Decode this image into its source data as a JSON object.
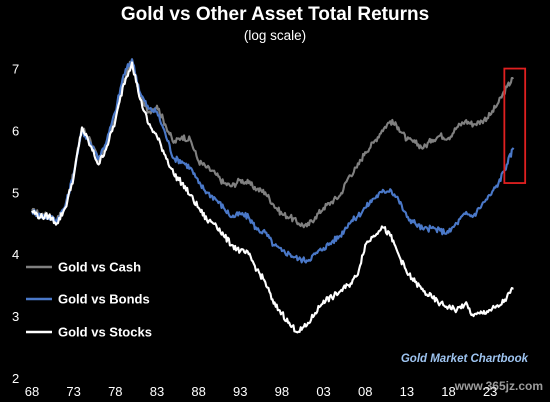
{
  "chart_data": {
    "type": "line",
    "title": "Gold vs Other Asset Total Returns",
    "subtitle": "(log scale)",
    "xlabel": "",
    "ylabel": "",
    "xlim": [
      1968,
      2028.5
    ],
    "ylim": [
      2,
      7.3
    ],
    "x_ticks": [
      "68",
      "73",
      "78",
      "83",
      "88",
      "93",
      "98",
      "03",
      "08",
      "13",
      "18",
      "23"
    ],
    "y_ticks": [
      "7",
      "6",
      "5",
      "4",
      "3",
      "2"
    ],
    "grid": false,
    "legend_position": "bottom-left",
    "series": [
      {
        "name": "Gold vs Cash",
        "color": "#808080",
        "points": [
          [
            1968,
            4.7
          ],
          [
            1969,
            4.65
          ],
          [
            1970,
            4.62
          ],
          [
            1971,
            4.55
          ],
          [
            1972,
            4.78
          ],
          [
            1973,
            5.3
          ],
          [
            1974,
            6.05
          ],
          [
            1975,
            5.85
          ],
          [
            1976,
            5.5
          ],
          [
            1977,
            5.8
          ],
          [
            1978,
            6.2
          ],
          [
            1979,
            6.8
          ],
          [
            1980,
            7.15
          ],
          [
            1981,
            6.5
          ],
          [
            1982,
            6.3
          ],
          [
            1983,
            6.4
          ],
          [
            1984,
            6.1
          ],
          [
            1985,
            5.8
          ],
          [
            1986,
            5.9
          ],
          [
            1987,
            5.85
          ],
          [
            1988,
            5.5
          ],
          [
            1989,
            5.4
          ],
          [
            1990,
            5.3
          ],
          [
            1991,
            5.15
          ],
          [
            1992,
            5.1
          ],
          [
            1993,
            5.2
          ],
          [
            1994,
            5.15
          ],
          [
            1995,
            5.05
          ],
          [
            1996,
            5.0
          ],
          [
            1997,
            4.8
          ],
          [
            1998,
            4.65
          ],
          [
            1999,
            4.6
          ],
          [
            2000,
            4.5
          ],
          [
            2001,
            4.45
          ],
          [
            2002,
            4.6
          ],
          [
            2003,
            4.75
          ],
          [
            2004,
            4.85
          ],
          [
            2005,
            4.95
          ],
          [
            2006,
            5.25
          ],
          [
            2007,
            5.4
          ],
          [
            2008,
            5.65
          ],
          [
            2009,
            5.8
          ],
          [
            2010,
            6.0
          ],
          [
            2011,
            6.15
          ],
          [
            2012,
            6.05
          ],
          [
            2013,
            5.85
          ],
          [
            2014,
            5.8
          ],
          [
            2015,
            5.72
          ],
          [
            2016,
            5.85
          ],
          [
            2017,
            5.92
          ],
          [
            2018,
            5.88
          ],
          [
            2019,
            6.05
          ],
          [
            2020,
            6.15
          ],
          [
            2021,
            6.1
          ],
          [
            2022,
            6.15
          ],
          [
            2023,
            6.25
          ],
          [
            2024,
            6.45
          ],
          [
            2025,
            6.7
          ],
          [
            2025.8,
            6.85
          ]
        ]
      },
      {
        "name": "Gold vs Bonds",
        "color": "#4a78c8",
        "points": [
          [
            1968,
            4.7
          ],
          [
            1969,
            4.62
          ],
          [
            1970,
            4.6
          ],
          [
            1971,
            4.55
          ],
          [
            1972,
            4.78
          ],
          [
            1973,
            5.3
          ],
          [
            1974,
            6.0
          ],
          [
            1975,
            5.8
          ],
          [
            1976,
            5.55
          ],
          [
            1977,
            5.85
          ],
          [
            1978,
            6.3
          ],
          [
            1979,
            6.9
          ],
          [
            1980,
            7.15
          ],
          [
            1981,
            6.6
          ],
          [
            1982,
            6.35
          ],
          [
            1983,
            6.3
          ],
          [
            1984,
            5.95
          ],
          [
            1985,
            5.55
          ],
          [
            1986,
            5.5
          ],
          [
            1987,
            5.4
          ],
          [
            1988,
            5.15
          ],
          [
            1989,
            5.0
          ],
          [
            1990,
            4.9
          ],
          [
            1991,
            4.75
          ],
          [
            1992,
            4.6
          ],
          [
            1993,
            4.65
          ],
          [
            1994,
            4.6
          ],
          [
            1995,
            4.4
          ],
          [
            1996,
            4.35
          ],
          [
            1997,
            4.15
          ],
          [
            1998,
            4.05
          ],
          [
            1999,
            4.0
          ],
          [
            2000,
            3.92
          ],
          [
            2001,
            3.9
          ],
          [
            2002,
            4.0
          ],
          [
            2003,
            4.1
          ],
          [
            2004,
            4.2
          ],
          [
            2005,
            4.3
          ],
          [
            2006,
            4.5
          ],
          [
            2007,
            4.6
          ],
          [
            2008,
            4.75
          ],
          [
            2009,
            4.9
          ],
          [
            2010,
            5.0
          ],
          [
            2011,
            5.05
          ],
          [
            2012,
            4.88
          ],
          [
            2013,
            4.6
          ],
          [
            2014,
            4.5
          ],
          [
            2015,
            4.4
          ],
          [
            2016,
            4.42
          ],
          [
            2017,
            4.38
          ],
          [
            2018,
            4.35
          ],
          [
            2019,
            4.5
          ],
          [
            2020,
            4.65
          ],
          [
            2021,
            4.62
          ],
          [
            2022,
            4.8
          ],
          [
            2023,
            4.95
          ],
          [
            2024,
            5.15
          ],
          [
            2025,
            5.45
          ],
          [
            2025.8,
            5.72
          ]
        ]
      },
      {
        "name": "Gold vs Stocks",
        "color": "#ffffff",
        "points": [
          [
            1968,
            4.7
          ],
          [
            1969,
            4.6
          ],
          [
            1970,
            4.62
          ],
          [
            1971,
            4.5
          ],
          [
            1972,
            4.75
          ],
          [
            1973,
            5.25
          ],
          [
            1974,
            6.05
          ],
          [
            1975,
            5.75
          ],
          [
            1976,
            5.45
          ],
          [
            1977,
            5.75
          ],
          [
            1978,
            6.15
          ],
          [
            1979,
            6.75
          ],
          [
            1980,
            7.1
          ],
          [
            1981,
            6.5
          ],
          [
            1982,
            6.1
          ],
          [
            1983,
            5.9
          ],
          [
            1984,
            5.6
          ],
          [
            1985,
            5.3
          ],
          [
            1986,
            5.15
          ],
          [
            1987,
            4.95
          ],
          [
            1988,
            4.75
          ],
          [
            1989,
            4.55
          ],
          [
            1990,
            4.5
          ],
          [
            1991,
            4.3
          ],
          [
            1992,
            4.15
          ],
          [
            1993,
            4.05
          ],
          [
            1994,
            4.0
          ],
          [
            1995,
            3.75
          ],
          [
            1996,
            3.55
          ],
          [
            1997,
            3.2
          ],
          [
            1998,
            3.05
          ],
          [
            1999,
            2.85
          ],
          [
            2000,
            2.75
          ],
          [
            2001,
            2.85
          ],
          [
            2002,
            3.05
          ],
          [
            2003,
            3.25
          ],
          [
            2004,
            3.3
          ],
          [
            2005,
            3.4
          ],
          [
            2006,
            3.5
          ],
          [
            2007,
            3.65
          ],
          [
            2008,
            4.15
          ],
          [
            2009,
            4.3
          ],
          [
            2010,
            4.45
          ],
          [
            2011,
            4.3
          ],
          [
            2012,
            4.0
          ],
          [
            2013,
            3.7
          ],
          [
            2014,
            3.55
          ],
          [
            2015,
            3.4
          ],
          [
            2016,
            3.3
          ],
          [
            2017,
            3.2
          ],
          [
            2018,
            3.15
          ],
          [
            2019,
            3.1
          ],
          [
            2020,
            3.2
          ],
          [
            2021,
            3.0
          ],
          [
            2022,
            3.05
          ],
          [
            2023,
            3.1
          ],
          [
            2024,
            3.15
          ],
          [
            2025,
            3.3
          ],
          [
            2025.8,
            3.45
          ]
        ]
      }
    ],
    "highlight": {
      "color": "#e02020",
      "x_range": [
        2024.7,
        2027.2
      ],
      "y_range": [
        5.15,
        7.0
      ]
    },
    "annotations": [
      "Gold Market Chartbook"
    ],
    "watermark": "www.365jz.com"
  }
}
